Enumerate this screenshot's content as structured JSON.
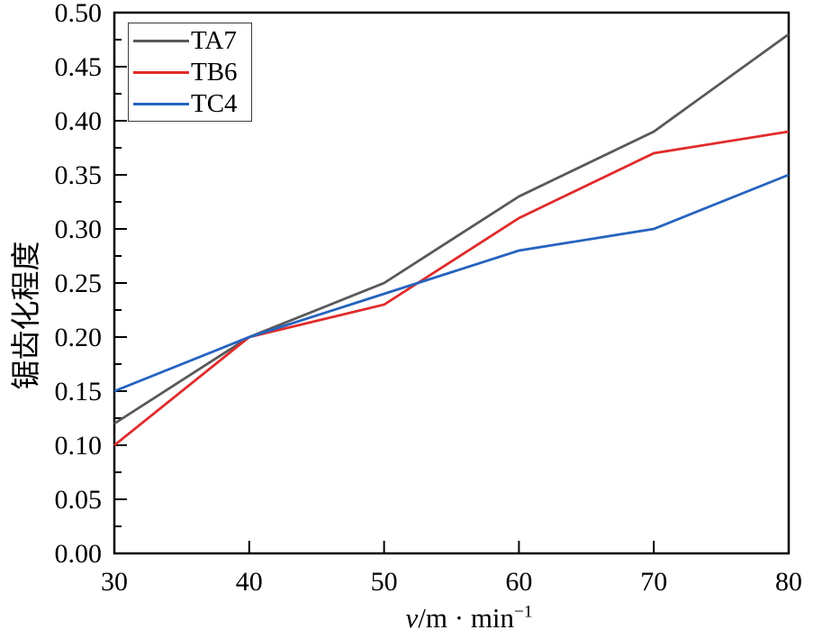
{
  "chart_data": {
    "type": "line",
    "title": "",
    "x": [
      30,
      40,
      50,
      60,
      70,
      80
    ],
    "series": [
      {
        "name": "TA7",
        "color": "#595959",
        "values": [
          0.12,
          0.2,
          0.25,
          0.33,
          0.39,
          0.48
        ]
      },
      {
        "name": "TB6",
        "color": "#e02b2b",
        "values": [
          0.1,
          0.2,
          0.23,
          0.31,
          0.37,
          0.39
        ]
      },
      {
        "name": "TC4",
        "color": "#2563bf",
        "values": [
          0.15,
          0.2,
          0.24,
          0.28,
          0.3,
          0.35
        ]
      }
    ],
    "xlabel": "v/m · min⁻¹",
    "xlabel_parts": {
      "variable": "v",
      "unit": "/m · min",
      "exponent": "−1"
    },
    "ylabel": "锯齿化程度",
    "xlim": [
      30,
      80
    ],
    "ylim": [
      0,
      0.5
    ],
    "xticks": [
      30,
      40,
      50,
      60,
      70,
      80
    ],
    "yticks": [
      0.0,
      0.05,
      0.1,
      0.15,
      0.2,
      0.25,
      0.3,
      0.35,
      0.4,
      0.45,
      0.5
    ],
    "y_minor_step": 0.025,
    "grid": false,
    "legend_position": "top-left",
    "frame_color": "#000000"
  }
}
